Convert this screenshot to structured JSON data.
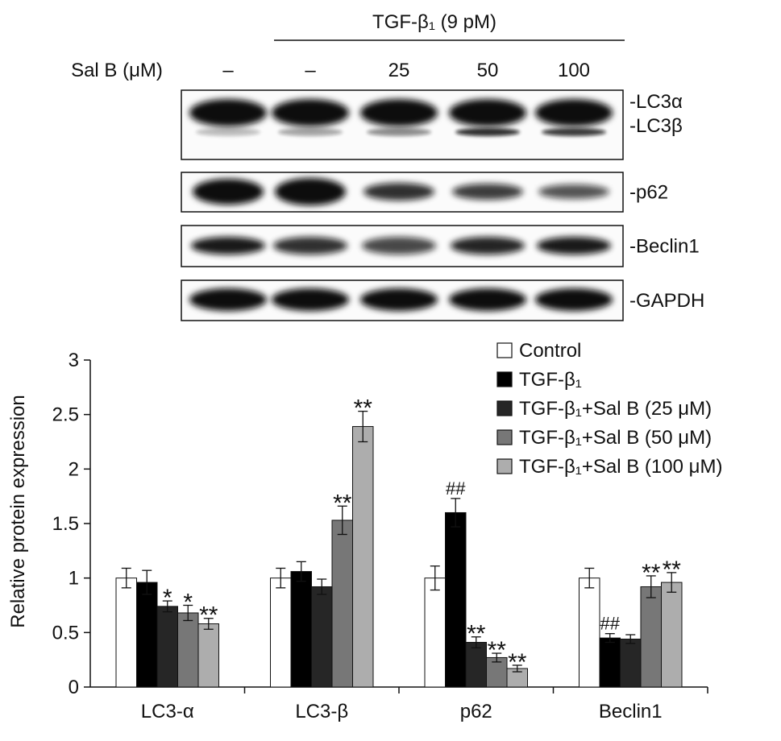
{
  "blot": {
    "treatment_label": "TGF-β₁ (9 pM)",
    "salb_label": "Sal B (μM)",
    "salb_doses": [
      "–",
      "–",
      "25",
      "50",
      "100"
    ],
    "bands": [
      {
        "labels": [
          "-LC3α",
          "-LC3β"
        ]
      },
      {
        "labels": [
          "-p62"
        ]
      },
      {
        "labels": [
          "-Beclin1"
        ]
      },
      {
        "labels": [
          "-GAPDH"
        ]
      }
    ]
  },
  "chart_data": {
    "type": "bar",
    "categories": [
      "LC3-α",
      "LC3-β",
      "p62",
      "Beclin1"
    ],
    "ylabel": "Relative protein expression",
    "ylim": [
      0,
      3
    ],
    "yticks": [
      "0",
      "0.5",
      "1",
      "1.5",
      "2",
      "2.5",
      "3"
    ],
    "legend_position": "top-right",
    "series": [
      {
        "name": "Control",
        "color": "#ffffff",
        "values": [
          1.0,
          1.0,
          1.0,
          1.0
        ],
        "errors": [
          0.09,
          0.09,
          0.11,
          0.09
        ],
        "annotations": [
          "",
          "",
          "",
          ""
        ]
      },
      {
        "name": "TGF-β₁",
        "color": "#000000",
        "values": [
          0.96,
          1.06,
          1.6,
          0.45
        ],
        "errors": [
          0.11,
          0.09,
          0.13,
          0.04
        ],
        "annotations": [
          "",
          "",
          "##",
          "##"
        ]
      },
      {
        "name": "TGF-β₁+Sal B (25 μM)",
        "color": "#262626",
        "values": [
          0.74,
          0.92,
          0.41,
          0.44
        ],
        "errors": [
          0.05,
          0.07,
          0.05,
          0.04
        ],
        "annotations": [
          "*",
          "",
          "**",
          ""
        ]
      },
      {
        "name": "TGF-β₁+Sal B (50 μM)",
        "color": "#777777",
        "values": [
          0.68,
          1.53,
          0.27,
          0.92
        ],
        "errors": [
          0.07,
          0.13,
          0.04,
          0.1
        ],
        "annotations": [
          "*",
          "**",
          "**",
          "**"
        ]
      },
      {
        "name": "TGF-β₁+Sal B (100 μM)",
        "color": "#adadad",
        "values": [
          0.58,
          2.39,
          0.17,
          0.96
        ],
        "errors": [
          0.05,
          0.14,
          0.03,
          0.09
        ],
        "annotations": [
          "**",
          "**",
          "**",
          "**"
        ]
      }
    ]
  }
}
